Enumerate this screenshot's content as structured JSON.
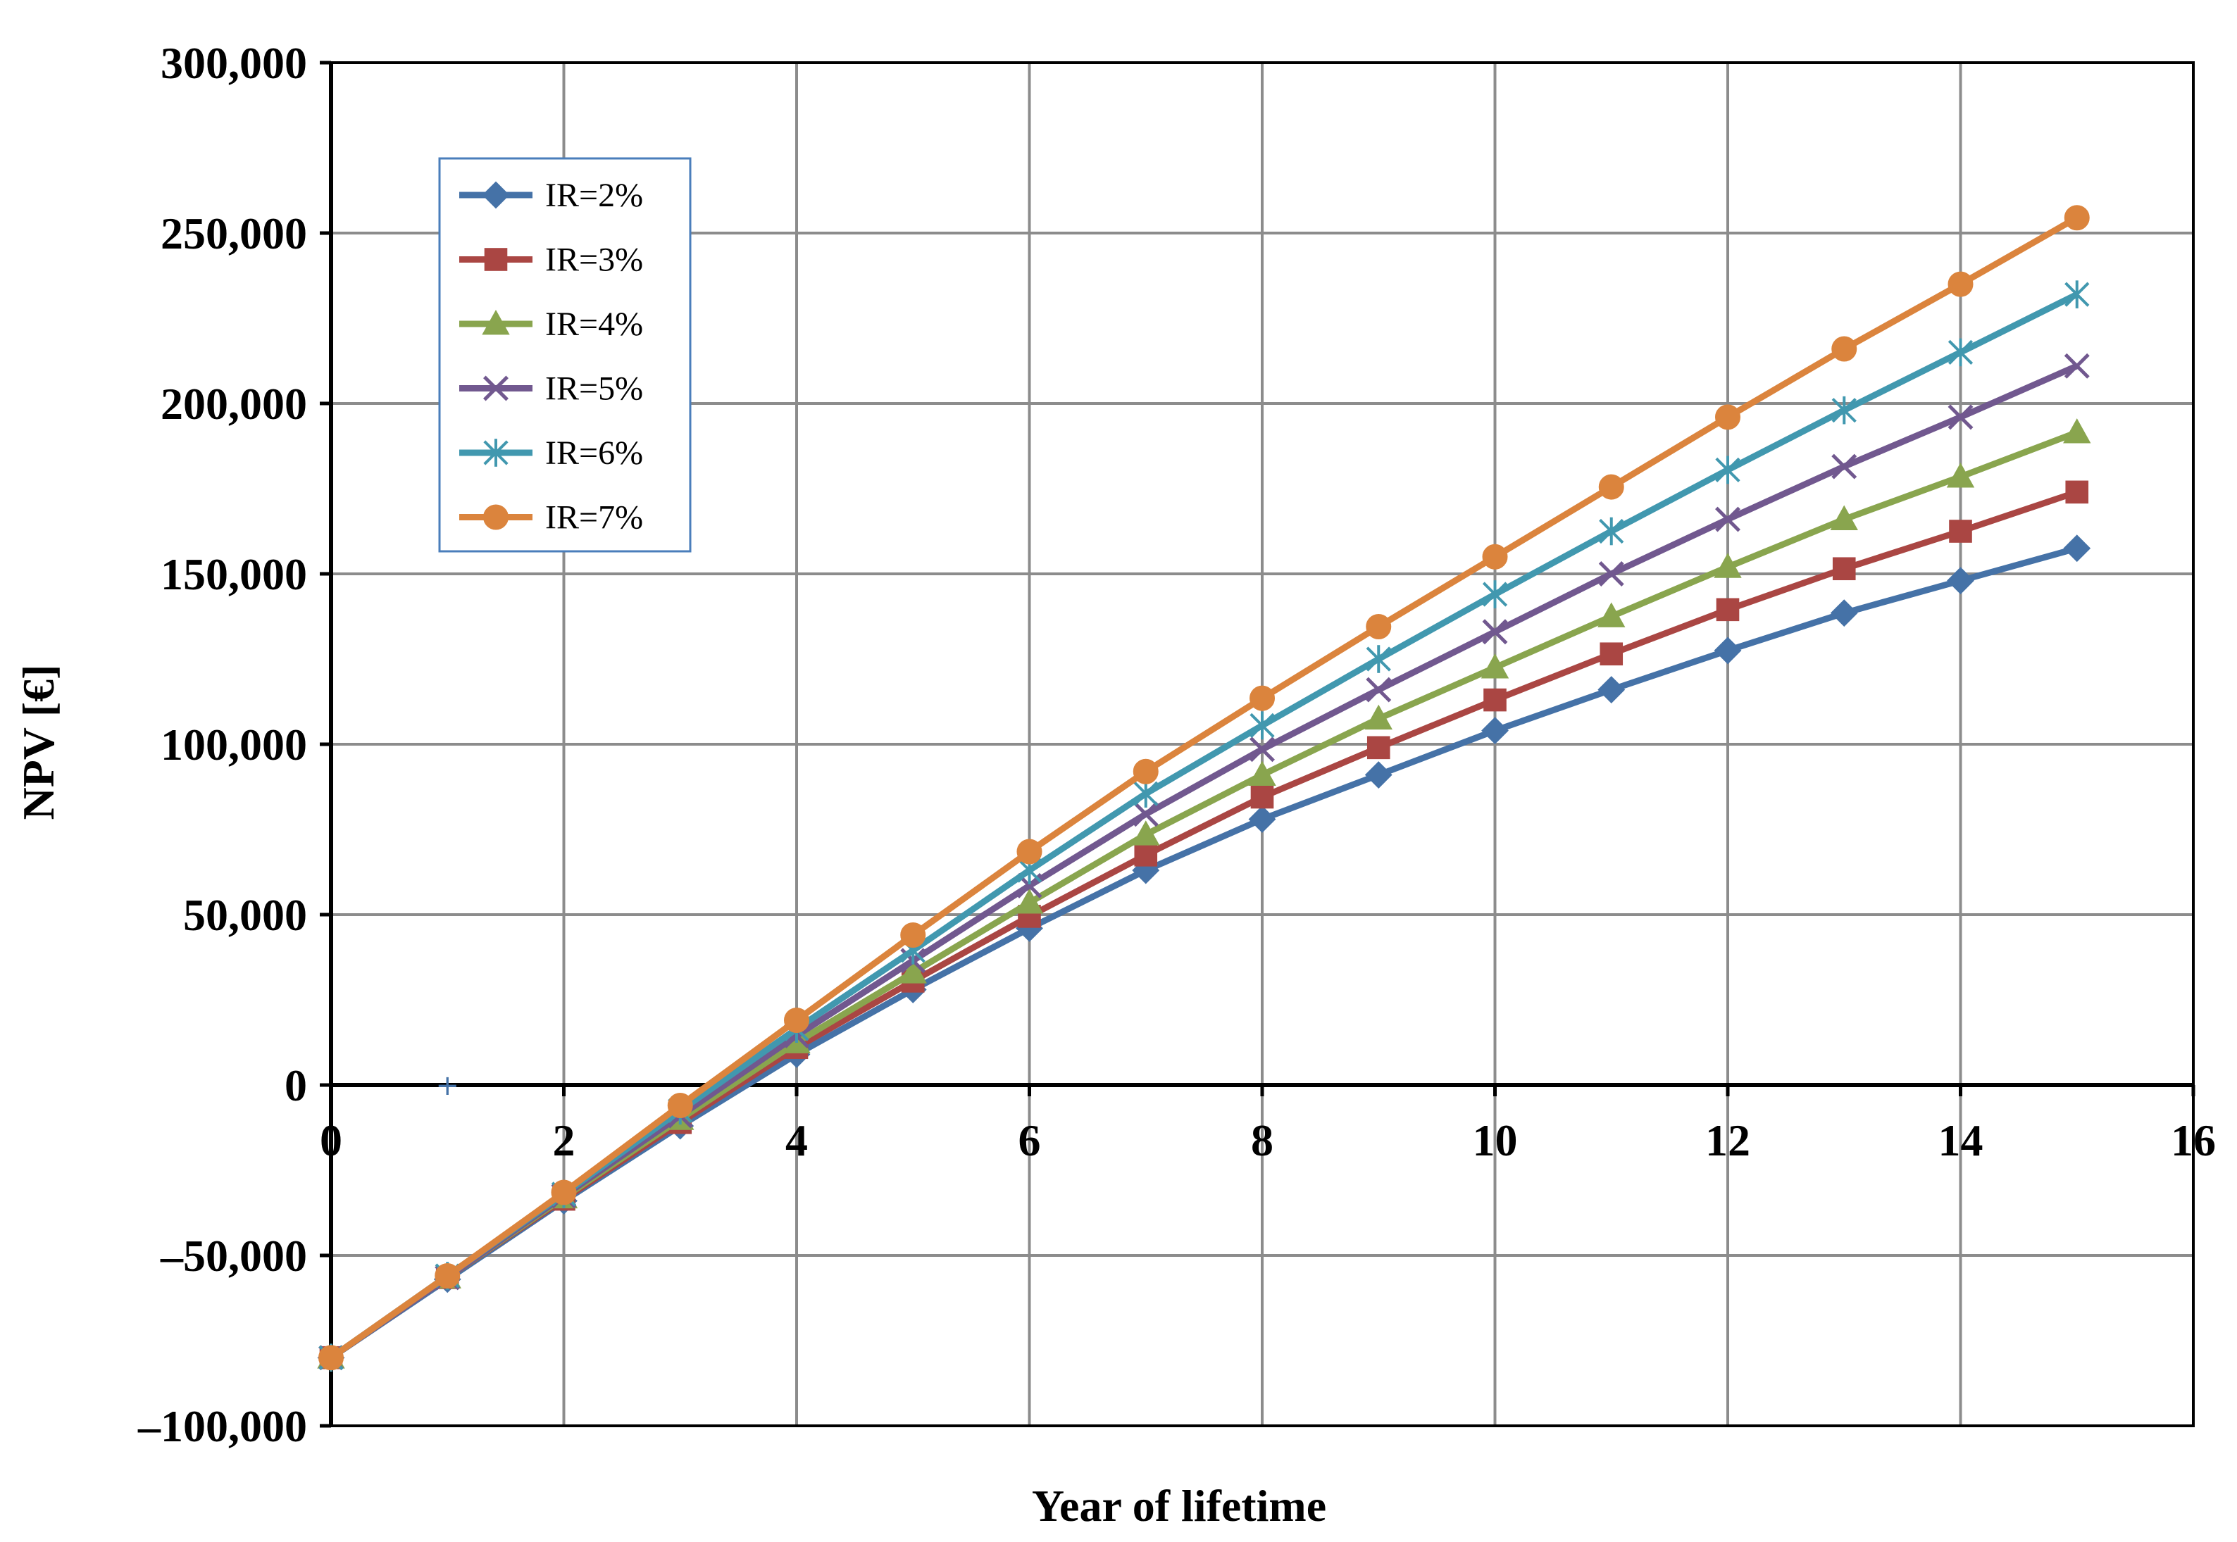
{
  "chart_data": {
    "type": "line",
    "title": "",
    "xlabel": "Year of lifetime",
    "ylabel": "NPV [€]",
    "xlim": [
      0,
      16
    ],
    "ylim": [
      -100000,
      300000
    ],
    "x_ticks": [
      0,
      2,
      4,
      6,
      8,
      10,
      12,
      14,
      16
    ],
    "y_ticks": [
      -100000,
      -50000,
      0,
      50000,
      100000,
      150000,
      200000,
      250000,
      300000
    ],
    "x_tick_labels": [
      "0",
      "2",
      "4",
      "6",
      "8",
      "10",
      "12",
      "14",
      "16"
    ],
    "y_tick_labels": [
      "–100,000",
      "–50,000",
      "0",
      "50,000",
      "100,000",
      "150,000",
      "200,000",
      "250,000",
      "300,000"
    ],
    "grid": true,
    "legend_position": "top-left",
    "x": [
      0,
      1,
      2,
      3,
      4,
      5,
      6,
      7,
      8,
      9,
      10,
      11,
      12,
      13,
      14,
      15
    ],
    "series": [
      {
        "name": "IR=2%",
        "color": "#4572A7",
        "marker": "diamond",
        "values": [
          -80000,
          -57000,
          -34000,
          -12000,
          9000,
          28000,
          46000,
          63000,
          78000,
          91000,
          104000,
          116000,
          127500,
          138500,
          148000,
          157500
        ]
      },
      {
        "name": "IR=3%",
        "color": "#AA4643",
        "marker": "square",
        "values": [
          -80000,
          -56500,
          -33500,
          -11000,
          11000,
          30500,
          49500,
          67500,
          84500,
          99000,
          113000,
          126500,
          139500,
          151500,
          162500,
          174000
        ]
      },
      {
        "name": "IR=4%",
        "color": "#89A54E",
        "marker": "triangle",
        "values": [
          -80000,
          -56500,
          -33000,
          -10000,
          12500,
          33000,
          53500,
          73500,
          91000,
          107500,
          122500,
          137500,
          152000,
          166000,
          178500,
          191500
        ]
      },
      {
        "name": "IR=5%",
        "color": "#71588F",
        "marker": "x",
        "values": [
          -80000,
          -56500,
          -32500,
          -9000,
          14500,
          36500,
          58500,
          79500,
          98500,
          116000,
          133000,
          150000,
          166000,
          181500,
          196000,
          211000
        ]
      },
      {
        "name": "IR=6%",
        "color": "#4198AF",
        "marker": "asterisk",
        "values": [
          -80000,
          -56000,
          -32000,
          -7500,
          16500,
          39500,
          63000,
          85500,
          105500,
          125000,
          144000,
          162500,
          180500,
          198000,
          215000,
          232000
        ]
      },
      {
        "name": "IR=7%",
        "color": "#DB843D",
        "marker": "circle",
        "values": [
          -80000,
          -56000,
          -31500,
          -6000,
          19000,
          44000,
          68500,
          92000,
          113500,
          134500,
          155000,
          175500,
          196000,
          216000,
          235000,
          254500
        ]
      }
    ]
  }
}
